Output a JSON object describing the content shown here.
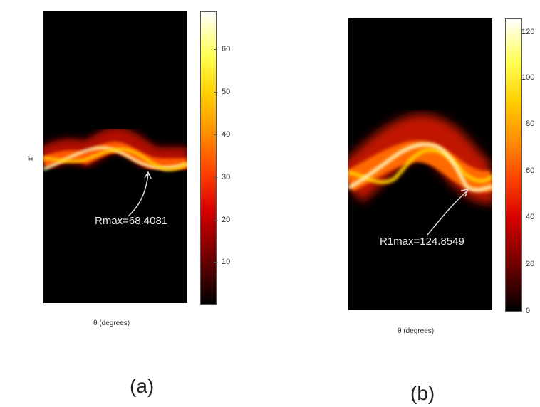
{
  "chart_data": [
    {
      "type": "heatmap",
      "panel_label": "(a)",
      "xlabel": "θ (degrees)",
      "ylabel": "x'",
      "annotation": "Rmax=68.4081",
      "colorbar": {
        "colormap": "hot",
        "range": [
          0,
          68.4081
        ],
        "ticks": [
          10,
          20,
          30,
          40,
          50,
          60
        ],
        "tick_labels": [
          "10",
          "20",
          "30",
          "40",
          "50",
          "60"
        ]
      }
    },
    {
      "type": "heatmap",
      "panel_label": "(b)",
      "xlabel": "θ (degrees)",
      "annotation": "R1max=124.8549",
      "colorbar": {
        "colormap": "hot",
        "range": [
          0,
          124.8549
        ],
        "ticks": [
          0,
          20,
          40,
          60,
          80,
          100,
          120
        ],
        "tick_labels": [
          "0",
          "20",
          "40",
          "60",
          "80",
          "100",
          "120"
        ]
      }
    }
  ],
  "colors": {
    "background": "#ffffff",
    "plot_background": "#000000",
    "annotation_text": "#e8e8e8",
    "arrow": "#d8d8d8"
  }
}
